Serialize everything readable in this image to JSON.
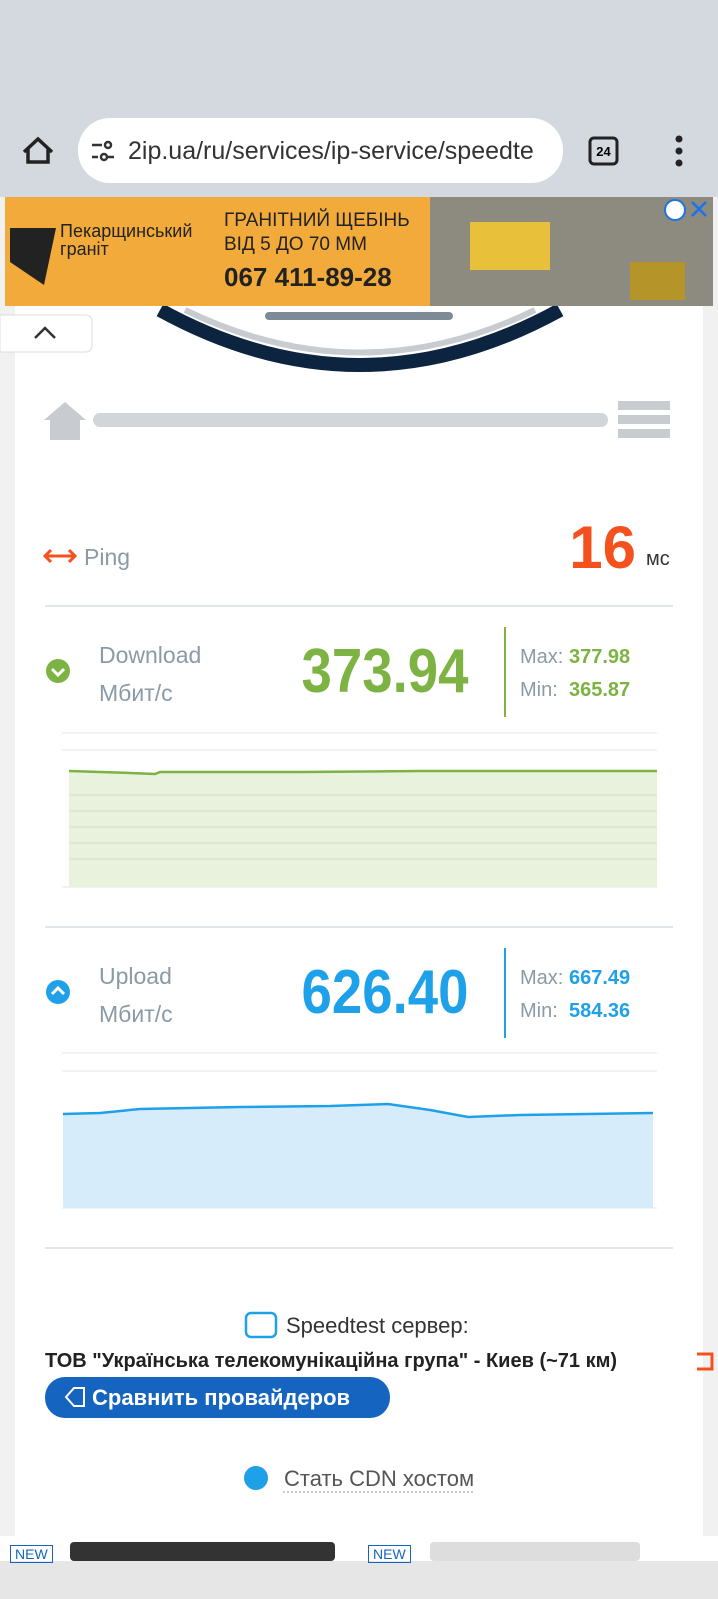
{
  "browser": {
    "url": "2ip.ua/ru/services/ip-service/speedte",
    "tabs": "24"
  },
  "ad": {
    "brand": "Пекарщинський граніт",
    "headline_1": "ГРАНІТНИЙ ЩЕБІНЬ",
    "headline_2": "ВІД 5 ДО 70 ММ",
    "phone": "067 411-89-28"
  },
  "ping": {
    "label": "Ping",
    "value": "16",
    "unit": "мс"
  },
  "download": {
    "label": "Download",
    "unit": "Мбит/с",
    "value": "373.94",
    "max_label": "Max:",
    "max": "377.98",
    "min_label": "Min:",
    "min": "365.87"
  },
  "upload": {
    "label": "Upload",
    "unit": "Мбит/с",
    "value": "626.40",
    "max_label": "Max:",
    "max": "667.49",
    "min_label": "Min:",
    "min": "584.36"
  },
  "server": {
    "label": "Speedtest сервер:",
    "name": "ТОВ \"Українська телекомунікаційна група\" - Киев (~71 км)"
  },
  "compare_button": "Сравнить провайдеров",
  "cdn_link": "Стать CDN хостом",
  "bottom_ad": {
    "badge_1": "NEW",
    "badge_2": "NEW"
  }
}
